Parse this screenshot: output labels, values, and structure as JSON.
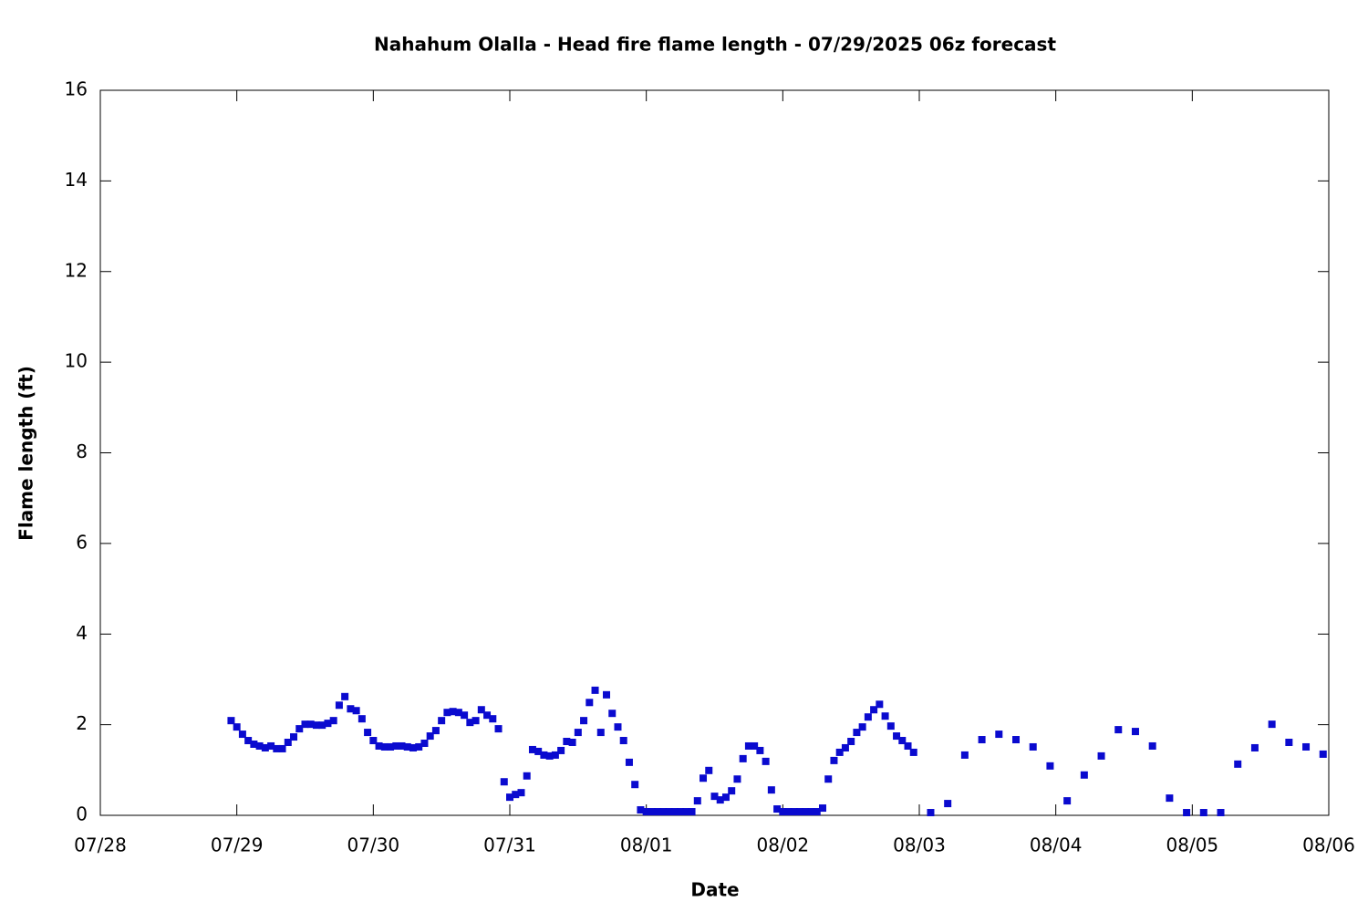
{
  "chart_data": {
    "type": "scatter",
    "title": "Nahahum Olalla - Head fire flame length - 07/29/2025 06z forecast",
    "x_label": "Date",
    "y_label": "Flame length (ft)",
    "xlim": [
      0,
      216
    ],
    "xticks": [
      {
        "value": 0,
        "label": "07/28"
      },
      {
        "value": 24,
        "label": "07/29"
      },
      {
        "value": 48,
        "label": "07/30"
      },
      {
        "value": 72,
        "label": "07/31"
      },
      {
        "value": 96,
        "label": "08/01"
      },
      {
        "value": 120,
        "label": "08/02"
      },
      {
        "value": 144,
        "label": "08/03"
      },
      {
        "value": 168,
        "label": "08/04"
      },
      {
        "value": 192,
        "label": "08/05"
      },
      {
        "value": 216,
        "label": "08/06"
      }
    ],
    "ylim": [
      0,
      16
    ],
    "yticks": [
      0,
      2,
      4,
      6,
      8,
      10,
      12,
      14,
      16
    ],
    "series": [
      {
        "color": "#0a0acf",
        "x": [
          23,
          24,
          25,
          26,
          27,
          28,
          29,
          30,
          31,
          32,
          33,
          34,
          35,
          36,
          37,
          38,
          39,
          40,
          41,
          42,
          43,
          44,
          45,
          46,
          47,
          48,
          49,
          50,
          51,
          52,
          53,
          54,
          55,
          56,
          57,
          58,
          59,
          60,
          61,
          62,
          63,
          64,
          65,
          66,
          67,
          68,
          69,
          70,
          71,
          72,
          73,
          74,
          75,
          76,
          77,
          78,
          79,
          80,
          81,
          82,
          83,
          84,
          85,
          86,
          87,
          88,
          89,
          90,
          91,
          92,
          93,
          94,
          95,
          96,
          97,
          98,
          99,
          100,
          101,
          102,
          103,
          104,
          105,
          106,
          107,
          108,
          109,
          110,
          111,
          112,
          113,
          114,
          115,
          116,
          117,
          118,
          119,
          120,
          121,
          122,
          123,
          124,
          125,
          126,
          127,
          128,
          129,
          130,
          131,
          132,
          133,
          134,
          135,
          136,
          137,
          138,
          139,
          140,
          141,
          142,
          143,
          146,
          149,
          152,
          155,
          158,
          161,
          164,
          167,
          170,
          173,
          176,
          179,
          182,
          185,
          188,
          191,
          194,
          197,
          200,
          203,
          206,
          209,
          212,
          215
        ],
        "values": [
          2.09,
          1.95,
          1.79,
          1.65,
          1.57,
          1.53,
          1.49,
          1.53,
          1.47,
          1.47,
          1.61,
          1.73,
          1.91,
          2.01,
          2.01,
          1.99,
          1.99,
          2.03,
          2.09,
          2.43,
          2.62,
          2.35,
          2.31,
          2.13,
          1.83,
          1.65,
          1.53,
          1.51,
          1.51,
          1.53,
          1.53,
          1.51,
          1.49,
          1.51,
          1.59,
          1.75,
          1.87,
          2.09,
          2.27,
          2.29,
          2.27,
          2.21,
          2.05,
          2.09,
          2.33,
          2.21,
          2.13,
          1.91,
          0.74,
          0.4,
          0.46,
          0.5,
          0.87,
          1.45,
          1.41,
          1.33,
          1.31,
          1.33,
          1.43,
          1.63,
          1.61,
          1.83,
          2.09,
          2.49,
          2.76,
          1.83,
          2.66,
          2.25,
          1.95,
          1.65,
          1.17,
          0.68,
          0.12,
          0.08,
          0.08,
          0.08,
          0.08,
          0.08,
          0.08,
          0.08,
          0.08,
          0.08,
          0.32,
          0.82,
          0.99,
          0.42,
          0.34,
          0.4,
          0.54,
          0.8,
          1.25,
          1.53,
          1.53,
          1.43,
          1.19,
          0.56,
          0.14,
          0.08,
          0.08,
          0.08,
          0.08,
          0.08,
          0.08,
          0.08,
          0.16,
          0.8,
          1.21,
          1.39,
          1.49,
          1.63,
          1.83,
          1.95,
          2.17,
          2.33,
          2.45,
          2.19,
          1.97,
          1.75,
          1.65,
          1.53,
          1.39,
          0.06,
          0.26,
          1.33,
          1.67,
          1.79,
          1.67,
          1.51,
          1.09,
          0.32,
          0.89,
          1.31,
          1.89,
          1.85,
          1.53,
          0.38,
          0.06,
          0.06,
          0.06,
          1.13,
          1.49,
          2.01,
          1.61,
          1.51,
          1.35
        ]
      }
    ]
  }
}
